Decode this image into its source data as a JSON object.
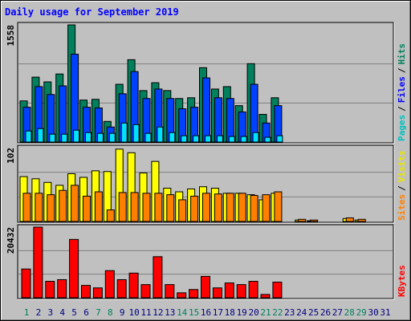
{
  "chart_data": [
    {
      "type": "bar",
      "title": "Daily usage for September 2019",
      "legend_separator": "/",
      "ylim": [
        0,
        1558
      ],
      "yticks": [
        1558
      ],
      "series": [
        {
          "name": "Hits",
          "color": "#00805c",
          "label_color": "#00805c",
          "values": [
            547,
            863,
            800,
            905,
            1558,
            558,
            568,
            274,
            768,
            1095,
            684,
            789,
            684,
            579,
            589,
            989,
            705,
            737,
            484,
            1042,
            368,
            589,
            0,
            0,
            0,
            null,
            null,
            0,
            0,
            null,
            null
          ]
        },
        {
          "name": "Files",
          "color": "#0040ff",
          "label_color": "#0000ff",
          "values": [
            463,
            737,
            632,
            747,
            1168,
            463,
            453,
            200,
            642,
            937,
            579,
            705,
            579,
            442,
            463,
            853,
            589,
            579,
            400,
            768,
            253,
            484,
            0,
            0,
            0,
            null,
            null,
            0,
            0,
            null,
            null
          ]
        },
        {
          "name": "Pages",
          "color": "#00e0ff",
          "label_color": "#00c0c0",
          "values": [
            147,
            179,
            105,
            105,
            158,
            126,
            116,
            116,
            253,
            232,
            116,
            200,
            126,
            84,
            84,
            84,
            84,
            74,
            74,
            126,
            63,
            84,
            0,
            0,
            0,
            null,
            null,
            0,
            0,
            null,
            null
          ]
        }
      ]
    },
    {
      "type": "bar",
      "ylim": [
        0,
        102
      ],
      "yticks": [
        102
      ],
      "series": [
        {
          "name": "Visits",
          "color": "#ffff00",
          "label_color": "#e8e800",
          "values": [
            62,
            59,
            54,
            50,
            66,
            61,
            70,
            69,
            100,
            95,
            67,
            83,
            46,
            41,
            45,
            48,
            46,
            39,
            39,
            37,
            30,
            39,
            0,
            2,
            1,
            null,
            null,
            4,
            2,
            null,
            null
          ]
        },
        {
          "name": "Sites",
          "color": "#ff8000",
          "label_color": "#ff8000",
          "values": [
            39,
            39,
            37,
            43,
            50,
            35,
            41,
            16,
            40,
            40,
            39,
            39,
            37,
            30,
            35,
            39,
            38,
            39,
            39,
            36,
            37,
            41,
            0,
            3,
            2,
            null,
            null,
            5,
            3,
            null,
            null
          ]
        }
      ]
    },
    {
      "type": "bar",
      "ylim": [
        0,
        20432
      ],
      "yticks": [
        20432
      ],
      "categories": [
        "1",
        "2",
        "3",
        "4",
        "5",
        "6",
        "7",
        "8",
        "9",
        "10",
        "11",
        "12",
        "13",
        "14",
        "15",
        "16",
        "17",
        "18",
        "19",
        "20",
        "21",
        "22",
        "23",
        "24",
        "25",
        "26",
        "27",
        "28",
        "29",
        "30",
        "31"
      ],
      "category_colors": [
        "#00805c",
        "#000080",
        "#000080",
        "#000080",
        "#000080",
        "#000080",
        "#00805c",
        "#00805c",
        "#000080",
        "#000080",
        "#000080",
        "#000080",
        "#000080",
        "#00805c",
        "#00805c",
        "#000080",
        "#000080",
        "#000080",
        "#000080",
        "#000080",
        "#00805c",
        "#00805c",
        "#000080",
        "#000080",
        "#000080",
        "#000080",
        "#000080",
        "#00805c",
        "#00805c",
        "#000080",
        "#000080"
      ],
      "series": [
        {
          "name": "KBytes",
          "color": "#ff0000",
          "label_color": "#ff0000",
          "values": [
            8316,
            20432,
            4752,
            5228,
            16870,
            3564,
            2851,
            7841,
            5228,
            7128,
            3802,
            11880,
            3802,
            1426,
            2376,
            6178,
            2851,
            4277,
            3802,
            4752,
            950,
            4514,
            0,
            0,
            0,
            null,
            null,
            0,
            0,
            null,
            null
          ]
        }
      ]
    }
  ]
}
